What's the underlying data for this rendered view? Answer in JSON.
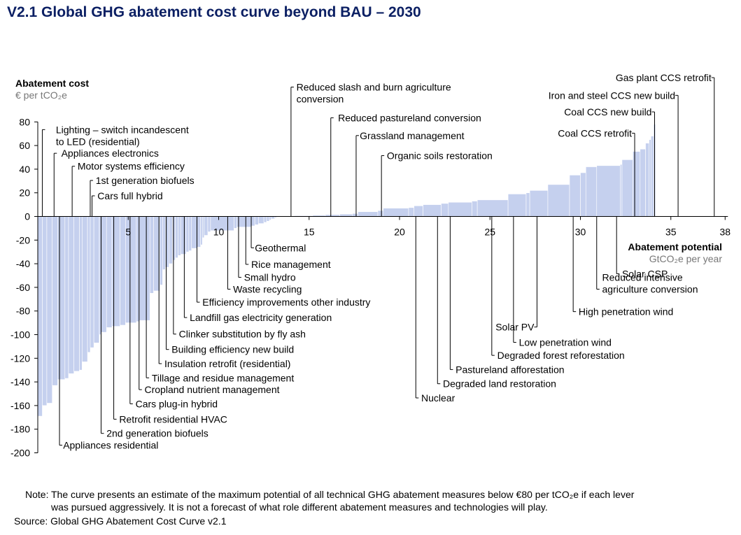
{
  "title": "V2.1 Global GHG abatement cost curve beyond BAU – 2030",
  "note": {
    "label": "Note:",
    "line1": "The curve presents an estimate of the maximum potential of all technical GHG abatement measures below €80 per tCO₂e if each lever",
    "line2": "was pursued aggressively. It is not a forecast of what role different abatement measures and technologies will play."
  },
  "source": "Source: Global GHG Abatement Cost Curve v2.1",
  "colors": {
    "bar": "#c5d0ee",
    "title": "#0b1f63",
    "ylabel_sub": "#777777"
  },
  "chart_data": {
    "type": "bar",
    "subtype": "variable-width abatement cost curve",
    "title": "V2.1 Global GHG abatement cost curve beyond BAU – 2030",
    "ylabel": "Abatement cost",
    "ylabel_unit": "€ per tCO₂e",
    "xlabel": "Abatement potential",
    "xlabel_unit": "GtCO₂e per year",
    "xlim": [
      0,
      38
    ],
    "ylim": [
      -200,
      80
    ],
    "xticks": [
      "5",
      "10",
      "15",
      "20",
      "25",
      "30",
      "35",
      "38"
    ],
    "yticks": [
      "80",
      "60",
      "40",
      "20",
      "0",
      "-20",
      "-40",
      "-60",
      "-80",
      "-100",
      "-120",
      "-140",
      "-160",
      "-180",
      "-200"
    ],
    "grid": false,
    "legend": "none",
    "bars": [
      {
        "w": 0.25,
        "y": -169
      },
      {
        "w": 0.25,
        "y": -160
      },
      {
        "w": 0.3,
        "y": -158
      },
      {
        "w": 0.3,
        "y": -143
      },
      {
        "w": 0.4,
        "y": -138
      },
      {
        "w": 0.2,
        "y": -137
      },
      {
        "w": 0.3,
        "y": -133
      },
      {
        "w": 0.3,
        "y": -131
      },
      {
        "w": 0.15,
        "y": -130
      },
      {
        "w": 0.3,
        "y": -123
      },
      {
        "w": 0.15,
        "y": -115
      },
      {
        "w": 0.2,
        "y": -111
      },
      {
        "w": 0.3,
        "y": -107
      },
      {
        "w": 0.1,
        "y": -100
      },
      {
        "w": 0.3,
        "y": -98
      },
      {
        "w": 0.3,
        "y": -94
      },
      {
        "w": 0.45,
        "y": -93
      },
      {
        "w": 0.3,
        "y": -92
      },
      {
        "w": 0.6,
        "y": -90
      },
      {
        "w": 0.15,
        "y": -89
      },
      {
        "w": 0.6,
        "y": -88
      },
      {
        "w": 0.2,
        "y": -65
      },
      {
        "w": 0.35,
        "y": -63
      },
      {
        "w": 0.15,
        "y": -58
      },
      {
        "w": 0.15,
        "y": -45
      },
      {
        "w": 0.2,
        "y": -43
      },
      {
        "w": 0.2,
        "y": -40
      },
      {
        "w": 0.15,
        "y": -37
      },
      {
        "w": 0.15,
        "y": -35
      },
      {
        "w": 0.15,
        "y": -33
      },
      {
        "w": 0.3,
        "y": -32
      },
      {
        "w": 0.15,
        "y": -30
      },
      {
        "w": 0.15,
        "y": -29
      },
      {
        "w": 0.3,
        "y": -27
      },
      {
        "w": 0.2,
        "y": -26
      },
      {
        "w": 0.1,
        "y": -24
      },
      {
        "w": 0.1,
        "y": -18
      },
      {
        "w": 0.2,
        "y": -16
      },
      {
        "w": 0.15,
        "y": -13
      },
      {
        "w": 1.3,
        "y": -12
      },
      {
        "w": 0.15,
        "y": -10
      },
      {
        "w": 0.8,
        "y": -9
      },
      {
        "w": 0.2,
        "y": -8
      },
      {
        "w": 0.2,
        "y": -7
      },
      {
        "w": 0.3,
        "y": -6
      },
      {
        "w": 0.15,
        "y": -5
      },
      {
        "w": 0.15,
        "y": -4
      },
      {
        "w": 0.1,
        "y": -3
      },
      {
        "w": 0.2,
        "y": -2
      },
      {
        "w": 0.1,
        "y": -1
      },
      {
        "w": 1.0,
        "y": 0.3
      },
      {
        "w": 1.0,
        "y": 0.6
      },
      {
        "w": 0.7,
        "y": 1
      },
      {
        "w": 0.8,
        "y": 1.5
      },
      {
        "w": 0.7,
        "y": 2
      },
      {
        "w": 0.3,
        "y": 2.5
      },
      {
        "w": 1.1,
        "y": 4
      },
      {
        "w": 0.3,
        "y": 5
      },
      {
        "w": 1.4,
        "y": 7
      },
      {
        "w": 0.3,
        "y": 7.5
      },
      {
        "w": 0.5,
        "y": 9
      },
      {
        "w": 1.0,
        "y": 10
      },
      {
        "w": 0.4,
        "y": 11
      },
      {
        "w": 1.3,
        "y": 12
      },
      {
        "w": 0.3,
        "y": 13
      },
      {
        "w": 1.7,
        "y": 14
      },
      {
        "w": 1.0,
        "y": 19
      },
      {
        "w": 0.2,
        "y": 20
      },
      {
        "w": 1.0,
        "y": 22
      },
      {
        "w": 1.2,
        "y": 27
      },
      {
        "w": 0.6,
        "y": 35
      },
      {
        "w": 0.3,
        "y": 37
      },
      {
        "w": 0.6,
        "y": 42
      },
      {
        "w": 1.3,
        "y": 43
      },
      {
        "w": 0.1,
        "y": 44
      },
      {
        "w": 0.6,
        "y": 48
      },
      {
        "w": 0.4,
        "y": 55
      },
      {
        "w": 0.3,
        "y": 57
      },
      {
        "w": 0.2,
        "y": 62
      },
      {
        "w": 0.1,
        "y": 65
      },
      {
        "w": 0.15,
        "y": 68
      },
      {
        "w": 0.1,
        "y": 78
      }
    ],
    "annotations": [
      {
        "text": "Lighting – switch incandescent",
        "text2": "to LED (residential)",
        "tx": 1.0,
        "ty": 70.5,
        "ax": 0.25
      },
      {
        "text": "Appliances electronics",
        "tx": 1.3,
        "ty": 50.5,
        "ax": 0.9
      },
      {
        "text": "Motor systems efficiency",
        "tx": 2.2,
        "ty": 39.5,
        "ax": 1.9
      },
      {
        "text": "1st generation biofuels",
        "tx": 3.2,
        "ty": 27.5,
        "ax": 2.9
      },
      {
        "text": "Cars full hybrid",
        "tx": 3.3,
        "ty": 14.5,
        "ax": 3.0
      },
      {
        "text": "Appliances residential",
        "tx": 1.4,
        "ty": -196.5,
        "ax": 1.2,
        "below": true
      },
      {
        "text": "2nd generation biofuels",
        "tx": 3.8,
        "ty": -186.5,
        "ax": 3.5,
        "below": true
      },
      {
        "text": "Retrofit residential HVAC",
        "tx": 4.5,
        "ty": -174.5,
        "ax": 4.2,
        "below": true
      },
      {
        "text": "Cars plug-in hybrid",
        "tx": 5.4,
        "ty": -161.5,
        "ax": 5.1,
        "below": true
      },
      {
        "text": "Cropland nutrient management",
        "tx": 5.9,
        "ty": -149.5,
        "ax": 5.6,
        "below": true
      },
      {
        "text": "Tillage and residue management",
        "tx": 6.3,
        "ty": -139.5,
        "ax": 6.0,
        "below": true
      },
      {
        "text": "Insulation retrofit (residential)",
        "tx": 7.0,
        "ty": -127.5,
        "ax": 6.7,
        "below": true
      },
      {
        "text": "Building efficiency new build",
        "tx": 7.4,
        "ty": -115.5,
        "ax": 7.1,
        "below": true
      },
      {
        "text": "Clinker substitution by fly ash",
        "tx": 7.8,
        "ty": -102.5,
        "ax": 7.5,
        "below": true
      },
      {
        "text": "Landfill gas electricity generation",
        "tx": 8.4,
        "ty": -88.5,
        "ax": 8.1,
        "below": true
      },
      {
        "text": "Efficiency improvements other industry",
        "tx": 9.1,
        "ty": -75.5,
        "ax": 8.8,
        "below": true
      },
      {
        "text": "Waste recycling",
        "tx": 10.8,
        "ty": -64.5,
        "ax": 10.5,
        "below": true
      },
      {
        "text": "Small hydro",
        "tx": 11.4,
        "ty": -54.5,
        "ax": 11.1,
        "below": true
      },
      {
        "text": "Rice management",
        "tx": 11.8,
        "ty": -43.5,
        "ax": 11.5,
        "below": true
      },
      {
        "text": "Geothermal",
        "tx": 12.0,
        "ty": -29.5,
        "ax": 11.8,
        "below": true
      },
      {
        "text": "Reduced slash and burn agriculture",
        "text2": "conversion",
        "tx": 14.3,
        "ty": 106.5,
        "ax": 14.0
      },
      {
        "text": "Reduced pastureland conversion",
        "tx": 16.6,
        "ty": 80.5,
        "ax": 16.2
      },
      {
        "text": "Grassland management",
        "tx": 17.8,
        "ty": 65.5,
        "ax": 17.6
      },
      {
        "text": "Organic soils restoration",
        "tx": 19.3,
        "ty": 48.5,
        "ax": 19.0
      },
      {
        "text": "Nuclear",
        "tx": 21.2,
        "ty": -156.5,
        "ax": 20.9,
        "below": true
      },
      {
        "text": "Degraded land restoration",
        "tx": 22.4,
        "ty": -144.5,
        "ax": 22.1,
        "below": true
      },
      {
        "text": "Pastureland afforestation",
        "tx": 23.1,
        "ty": -132.5,
        "ax": 22.8,
        "below": true
      },
      {
        "text": "Degraded forest reforestation",
        "tx": 25.4,
        "ty": -120.5,
        "ax": 25.1,
        "below": true
      },
      {
        "text": "Low penetration wind",
        "tx": 26.6,
        "ty": -109.5,
        "ax": 26.3,
        "below": true
      },
      {
        "text": "Solar PV",
        "tx": 27.3,
        "ty": -96.5,
        "ax": 27.6,
        "below": true,
        "textLeft": true
      },
      {
        "text": "High penetration wind",
        "tx": 29.9,
        "ty": -83.5,
        "ax": 29.6,
        "below": true
      },
      {
        "text": "Reduced intensive",
        "text2": "agriculture conversion",
        "tx": 31.2,
        "ty": -64.5,
        "ax": 30.9,
        "below": true,
        "twoUp": true
      },
      {
        "text": "Solar CSP",
        "tx": 32.3,
        "ty": -51.5,
        "ax": 32.0,
        "below": true
      },
      {
        "text": "Coal CCS retrofit",
        "tx": 32.6,
        "ty": 67.5,
        "ax": 33.0,
        "textLeft": true
      },
      {
        "text": "Coal CCS new build",
        "tx": 33.7,
        "ty": 85.5,
        "ax": 34.1,
        "textLeft": true
      },
      {
        "text": "Iron and steel CCS new build",
        "tx": 35.0,
        "ty": 99.5,
        "ax": 35.4,
        "textLeft": true
      },
      {
        "text": "Gas plant CCS retrofit",
        "tx": 37.0,
        "ty": 114.5,
        "ax": 37.4,
        "textLeft": true
      }
    ]
  }
}
